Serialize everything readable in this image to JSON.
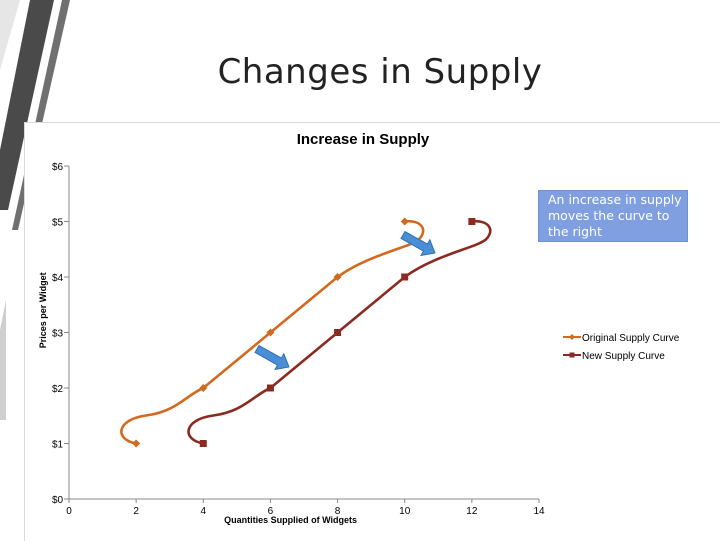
{
  "slide": {
    "title": "Changes in Supply"
  },
  "callout": {
    "text": "An increase in supply moves the curve to the right"
  },
  "colors": {
    "original": "#d2691e",
    "new": "#8b2a20",
    "arrow": "#4a8fd6",
    "deco": "#3d3d3d"
  },
  "chart_data": {
    "type": "line",
    "title": "Increase in Supply",
    "xlabel": "Quantities Supplied of Widgets",
    "ylabel": "Prices per Widget",
    "xlim": [
      0,
      14
    ],
    "ylim": [
      0,
      6
    ],
    "x_ticks": [
      "0",
      "2",
      "4",
      "6",
      "8",
      "10",
      "12",
      "14"
    ],
    "y_ticks": [
      "$0",
      "$1",
      "$2",
      "$3",
      "$4",
      "$5",
      "$6"
    ],
    "grid": false,
    "legend_position": "right",
    "series": [
      {
        "name": "Original Supply Curve",
        "marker": "diamond",
        "points": [
          [
            2,
            1
          ],
          [
            4,
            2
          ],
          [
            6,
            3
          ],
          [
            8,
            4
          ],
          [
            10,
            5
          ]
        ]
      },
      {
        "name": "New Supply Curve",
        "marker": "square",
        "points": [
          [
            4,
            1
          ],
          [
            6,
            2
          ],
          [
            8,
            3
          ],
          [
            10,
            4
          ],
          [
            12,
            5
          ]
        ]
      }
    ]
  }
}
